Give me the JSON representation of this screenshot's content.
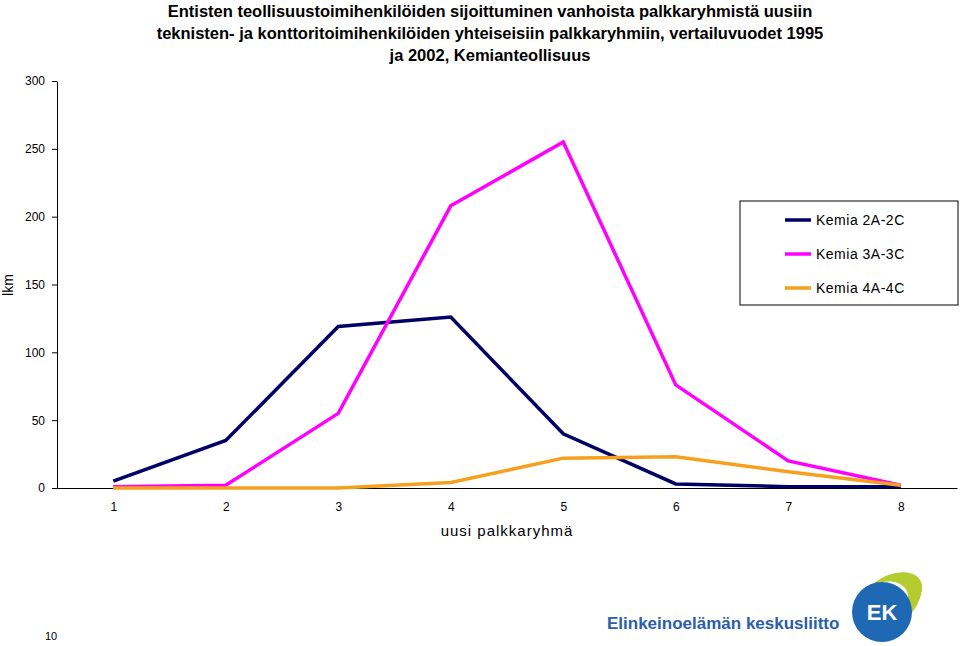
{
  "chart_data": {
    "type": "line",
    "title": "Entisten teollisuustoimihenkilöiden sijoittuminen vanhoista palkkaryhmistä uusiin\nteknisten- ja konttoritoimihenkilöiden yhteiseisiin palkkaryhmiin, vertailuvuodet 1995\nja 2002, Kemianteollisuus",
    "x_label": "uusi palkkaryhmä",
    "y_label": "lkm",
    "categories": [
      "1",
      "2",
      "3",
      "4",
      "5",
      "6",
      "7",
      "8"
    ],
    "series": [
      {
        "name": "Kemia 2A-2C",
        "color": "#000066",
        "values": [
          5,
          35,
          119,
          126,
          40,
          3,
          1,
          1
        ]
      },
      {
        "name": "Kemia 3A-3C",
        "color": "#ff00ff",
        "values": [
          1,
          2,
          55,
          208,
          255,
          76,
          20,
          2
        ]
      },
      {
        "name": "Kemia 4A-4C",
        "color": "#f7a01e",
        "values": [
          0,
          0,
          0,
          4,
          22,
          23,
          12,
          2
        ]
      }
    ],
    "ylim": [
      0,
      300
    ],
    "yticks": [
      0,
      50,
      100,
      150,
      200,
      250,
      300
    ],
    "grid": false,
    "legend": "right",
    "annotations": [
      "10",
      "Elinkeinoelämän keskusliitto",
      "EK"
    ]
  }
}
